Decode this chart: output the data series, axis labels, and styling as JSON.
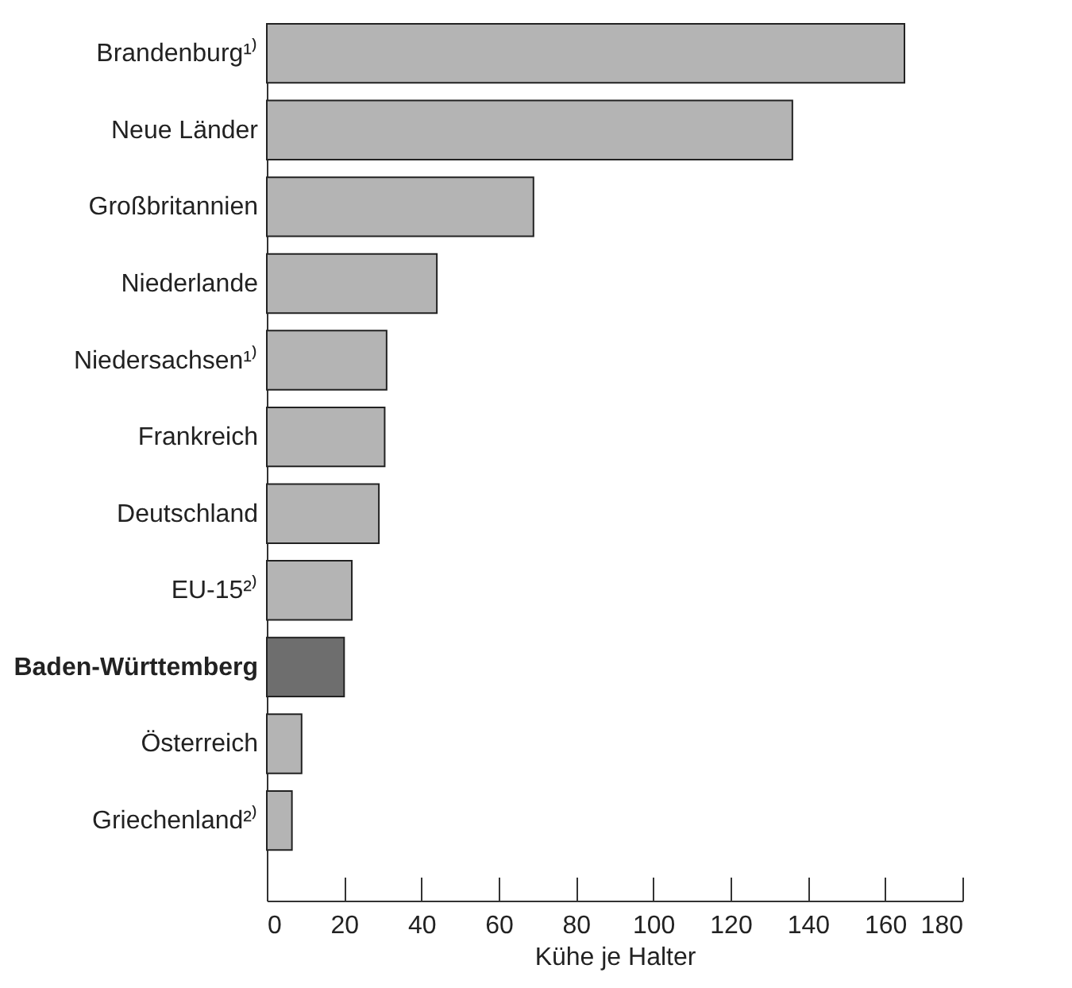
{
  "chart_data": {
    "type": "bar",
    "orientation": "horizontal",
    "xlabel": "Kühe je Halter",
    "categories": [
      "Brandenburg¹⁾",
      "Neue Länder",
      "Großbritannien",
      "Niederlande",
      "Niedersachsen¹⁾",
      "Frankreich",
      "Deutschland",
      "EU-15²⁾",
      "Baden-Württemberg",
      "Österreich",
      "Griechenland²⁾"
    ],
    "values": [
      165,
      136,
      69,
      44,
      31,
      30.5,
      29,
      22,
      20,
      9,
      6.5
    ],
    "colors": [
      "#b4b4b4",
      "#b4b4b4",
      "#b4b4b4",
      "#b4b4b4",
      "#b4b4b4",
      "#b4b4b4",
      "#b4b4b4",
      "#b4b4b4",
      "#6e6e6e",
      "#b4b4b4",
      "#b4b4b4"
    ],
    "xlim": [
      0,
      180
    ],
    "xticks": [
      0,
      20,
      40,
      60,
      80,
      100,
      120,
      140,
      160,
      180
    ],
    "grid": false,
    "legend": false
  }
}
